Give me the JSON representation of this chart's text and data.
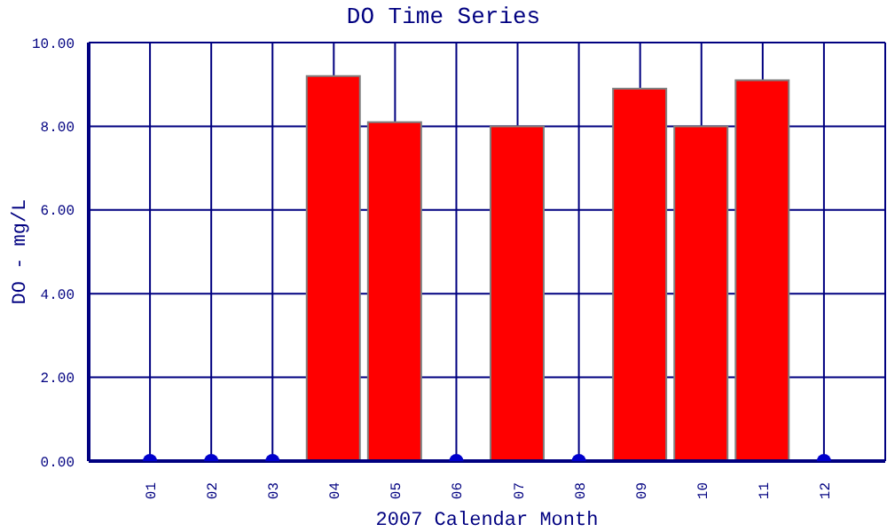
{
  "chart_data": {
    "type": "bar",
    "title": "DO Time Series",
    "xlabel": "2007 Calendar Month",
    "ylabel": "DO - mg/L",
    "categories": [
      "01",
      "02",
      "03",
      "04",
      "05",
      "06",
      "07",
      "08",
      "09",
      "10",
      "11",
      "12"
    ],
    "series": [
      {
        "color": "#ff0000",
        "values": [
          null,
          null,
          null,
          9.2,
          8.1,
          null,
          8.0,
          null,
          8.9,
          8.0,
          9.1,
          null
        ]
      },
      {
        "type": "scatter",
        "color": "#0000cc",
        "x": [
          "01",
          "02",
          "03",
          "06",
          "08",
          "12"
        ],
        "values": [
          0,
          0,
          0,
          0,
          0,
          0
        ]
      }
    ],
    "ylim": [
      0,
      10
    ],
    "yticks": [
      {
        "value": 0,
        "label": "0.00"
      },
      {
        "value": 2,
        "label": "2.00"
      },
      {
        "value": 4,
        "label": "4.00"
      },
      {
        "value": 6,
        "label": "6.00"
      },
      {
        "value": 8,
        "label": "8.00"
      },
      {
        "value": 10,
        "label": "10.00"
      }
    ],
    "grid": true,
    "marker": "circle"
  }
}
